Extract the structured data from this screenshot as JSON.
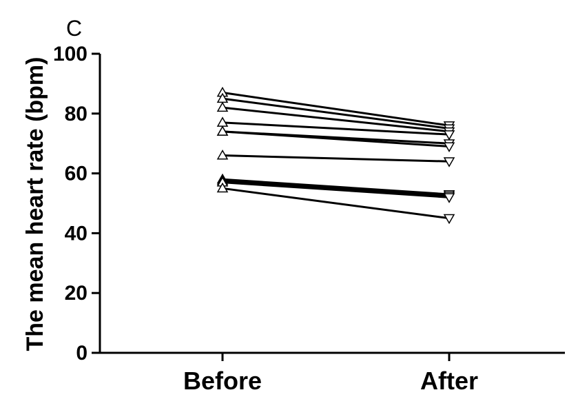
{
  "panel_label": "C",
  "chart_data": {
    "type": "line",
    "categories": [
      "Before",
      "After"
    ],
    "ylabel": "The mean heart rate (bpm)",
    "xlabel": "",
    "ylim": [
      0,
      100
    ],
    "yticks": [
      0,
      20,
      40,
      60,
      80,
      100
    ],
    "grid": false,
    "legend": "none",
    "markers": {
      "before": "triangle-up",
      "after": "triangle-down"
    },
    "series": [
      {
        "values": [
          87,
          76
        ]
      },
      {
        "values": [
          85,
          75
        ]
      },
      {
        "values": [
          82,
          74
        ]
      },
      {
        "values": [
          77,
          73
        ]
      },
      {
        "values": [
          74,
          70
        ]
      },
      {
        "values": [
          74,
          69
        ]
      },
      {
        "values": [
          66,
          64
        ]
      },
      {
        "values": [
          58,
          53
        ]
      },
      {
        "values": [
          57.5,
          52.5
        ]
      },
      {
        "values": [
          57,
          52
        ]
      },
      {
        "values": [
          55,
          45
        ]
      }
    ]
  }
}
